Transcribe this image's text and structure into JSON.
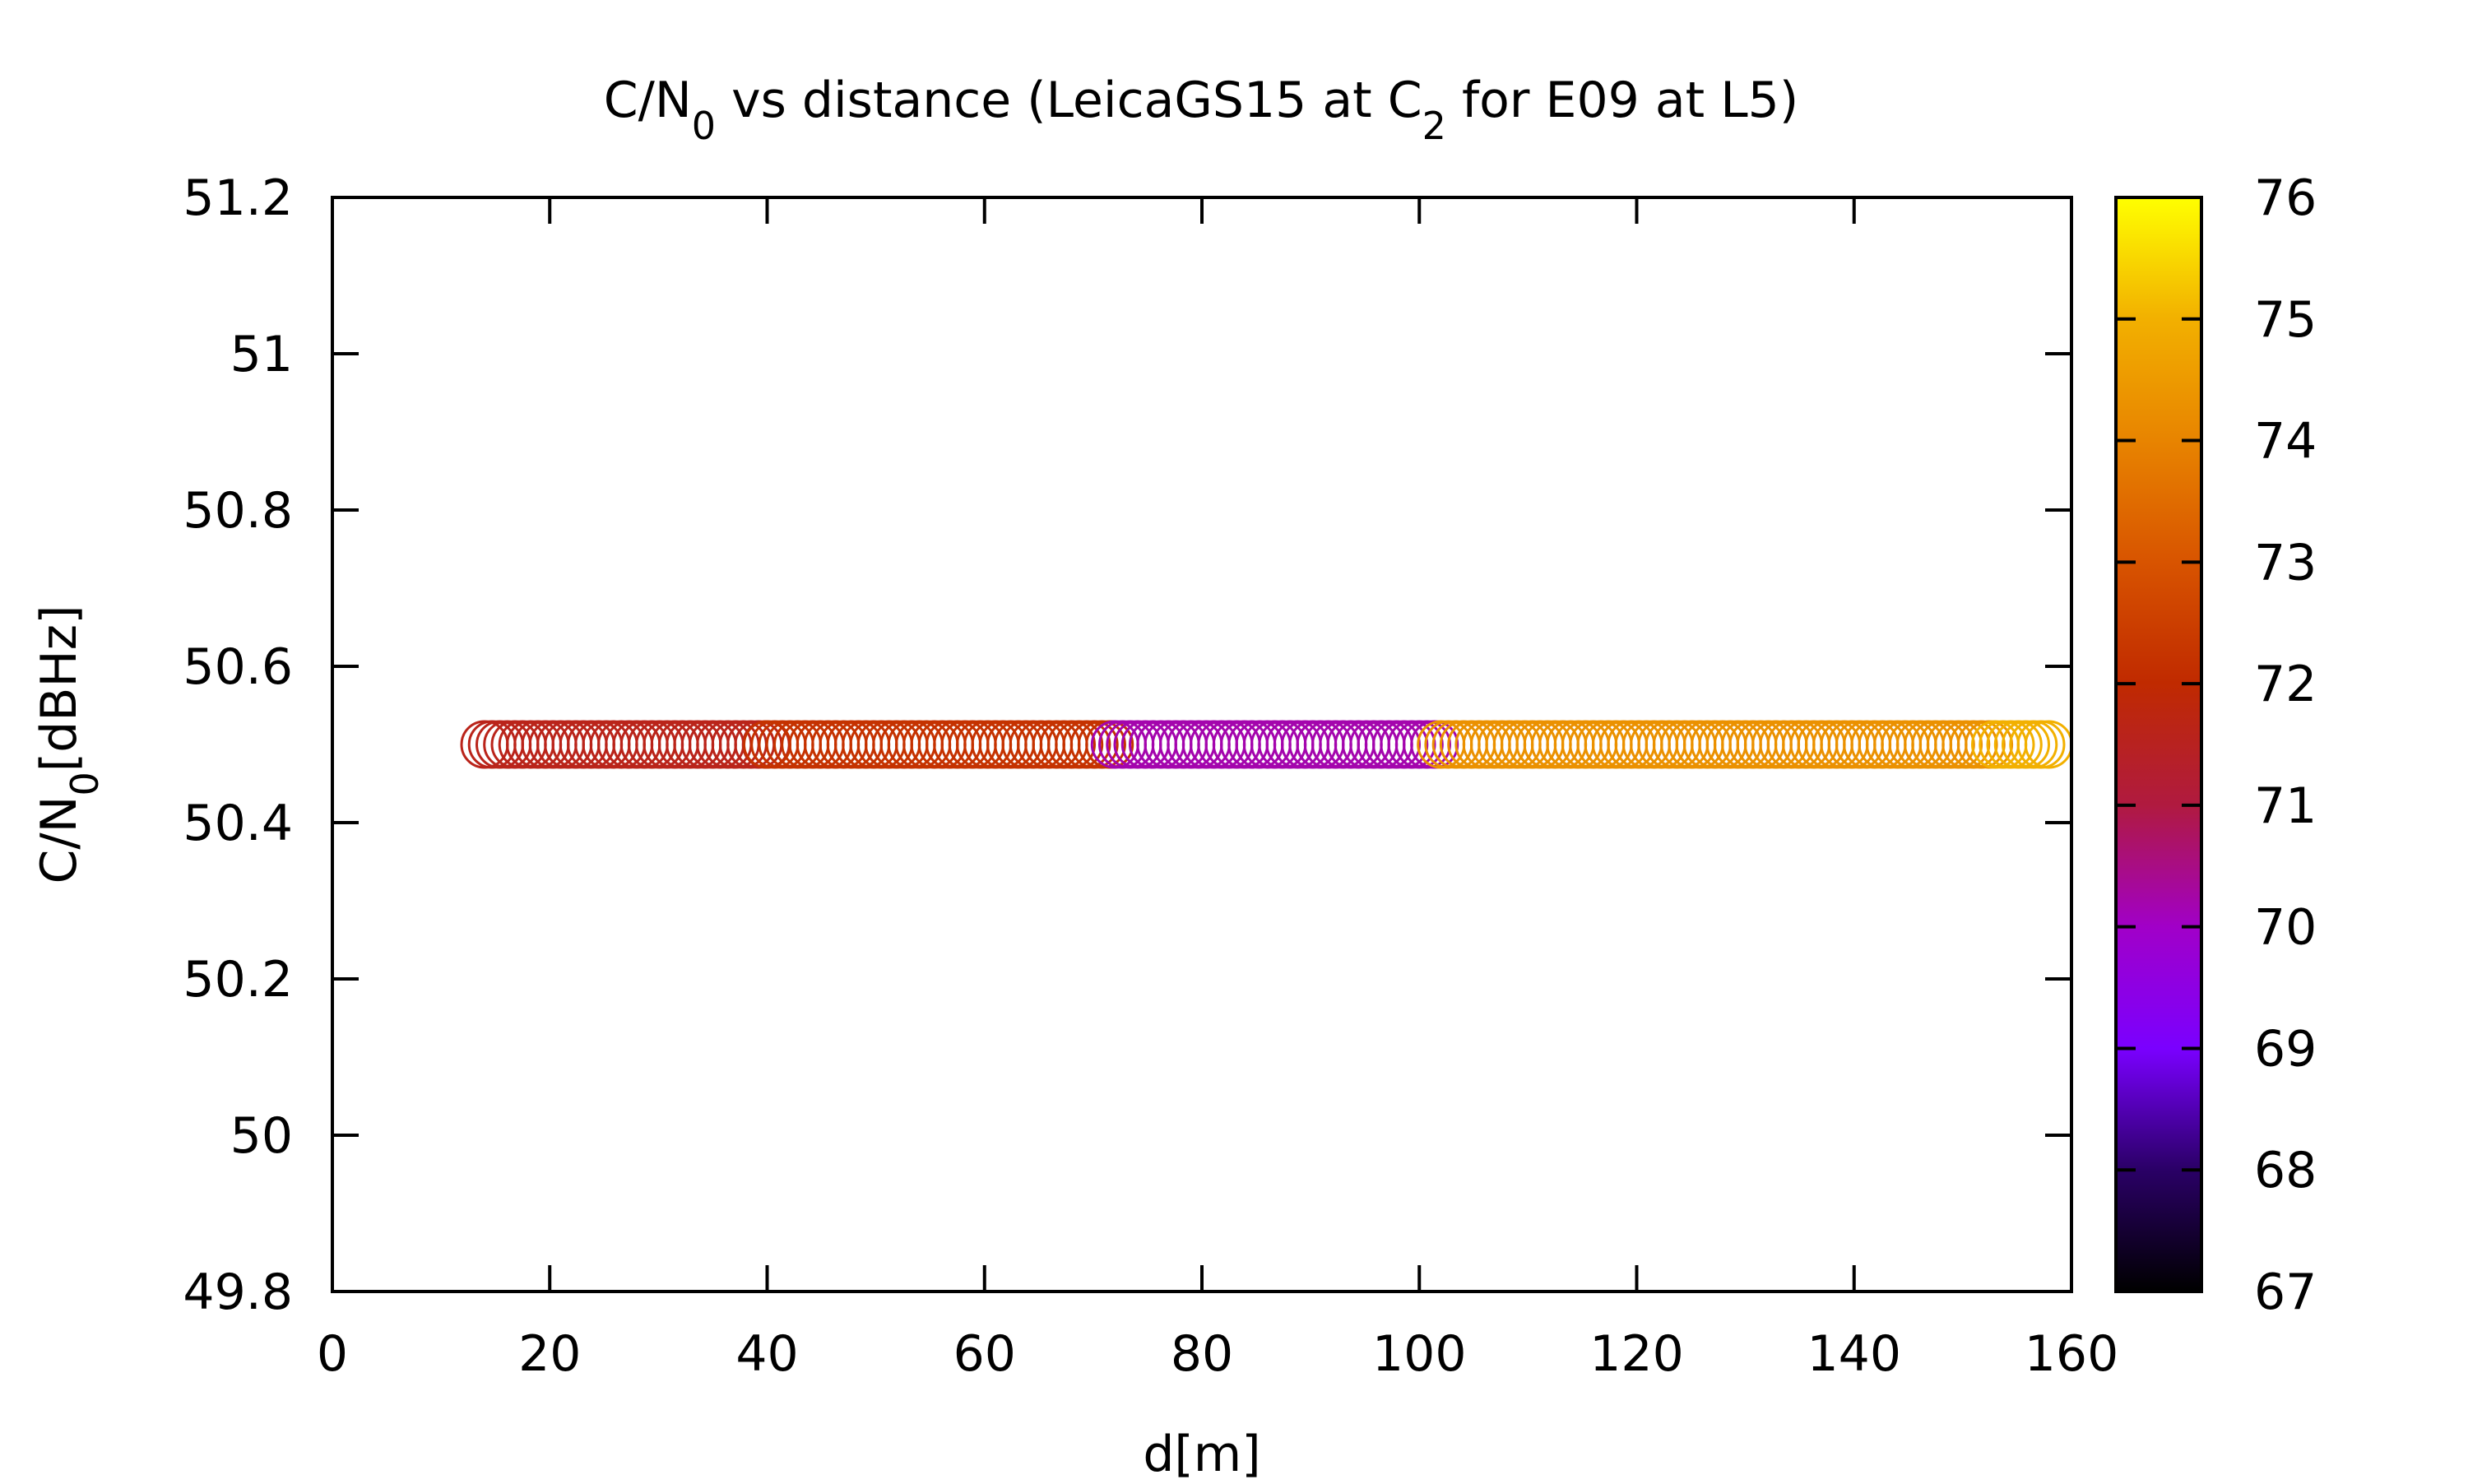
{
  "chart_data": {
    "type": "scatter",
    "title": {
      "parts": [
        {
          "text": "C/N",
          "sub": false
        },
        {
          "text": "0",
          "sub": true
        },
        {
          "text": " vs distance (LeicaGS15 at C",
          "sub": false
        },
        {
          "text": "2",
          "sub": true
        },
        {
          "text": " for E09 at L5)",
          "sub": false
        }
      ]
    },
    "xlabel": "d[m]",
    "ylabel": {
      "parts": [
        {
          "text": "C/N",
          "sub": false
        },
        {
          "text": "0",
          "sub": true
        },
        {
          "text": "[dBHz]",
          "sub": false
        }
      ]
    },
    "xlim": [
      0,
      160
    ],
    "ylim": [
      49.8,
      51.2
    ],
    "xticks": [
      0,
      20,
      40,
      60,
      80,
      100,
      120,
      140,
      160
    ],
    "yticks": [
      49.8,
      50,
      50.2,
      50.4,
      50.6,
      50.8,
      51,
      51.2
    ],
    "xtick_labels": [
      "0",
      "20",
      "40",
      "60",
      "80",
      "100",
      "120",
      "140",
      "160"
    ],
    "ytick_labels": [
      "49.8",
      "50",
      "50.2",
      "50.4",
      "50.6",
      "50.8",
      "51",
      "51.2"
    ],
    "grid": false,
    "marker": "open-circle",
    "colorbar": {
      "label": "",
      "range": [
        67,
        76
      ],
      "ticks": [
        67,
        68,
        69,
        70,
        71,
        72,
        73,
        74,
        75,
        76
      ],
      "tick_labels": [
        "67",
        "68",
        "69",
        "70",
        "71",
        "72",
        "73",
        "74",
        "75",
        "76"
      ],
      "colormap": "gnuplot-black-blue-purple-red-orange-yellow",
      "stops": [
        "#000000",
        "#2a0066",
        "#7a00ff",
        "#a100c8",
        "#b01a40",
        "#c02a00",
        "#d85400",
        "#e88400",
        "#f2b000",
        "#ffff00"
      ]
    },
    "segments": [
      {
        "x_start": 14,
        "x_end": 40,
        "y": 50.5,
        "color_value": 71.6
      },
      {
        "x_start": 40,
        "x_end": 72,
        "y": 50.5,
        "color_value": 72.2
      },
      {
        "x_start": 72,
        "x_end": 102,
        "y": 50.5,
        "color_value": 70.2
      },
      {
        "x_start": 102,
        "x_end": 153,
        "y": 50.5,
        "color_value": 74.3
      },
      {
        "x_start": 153,
        "x_end": 158,
        "y": 50.5,
        "color_value": 75.0
      }
    ]
  }
}
